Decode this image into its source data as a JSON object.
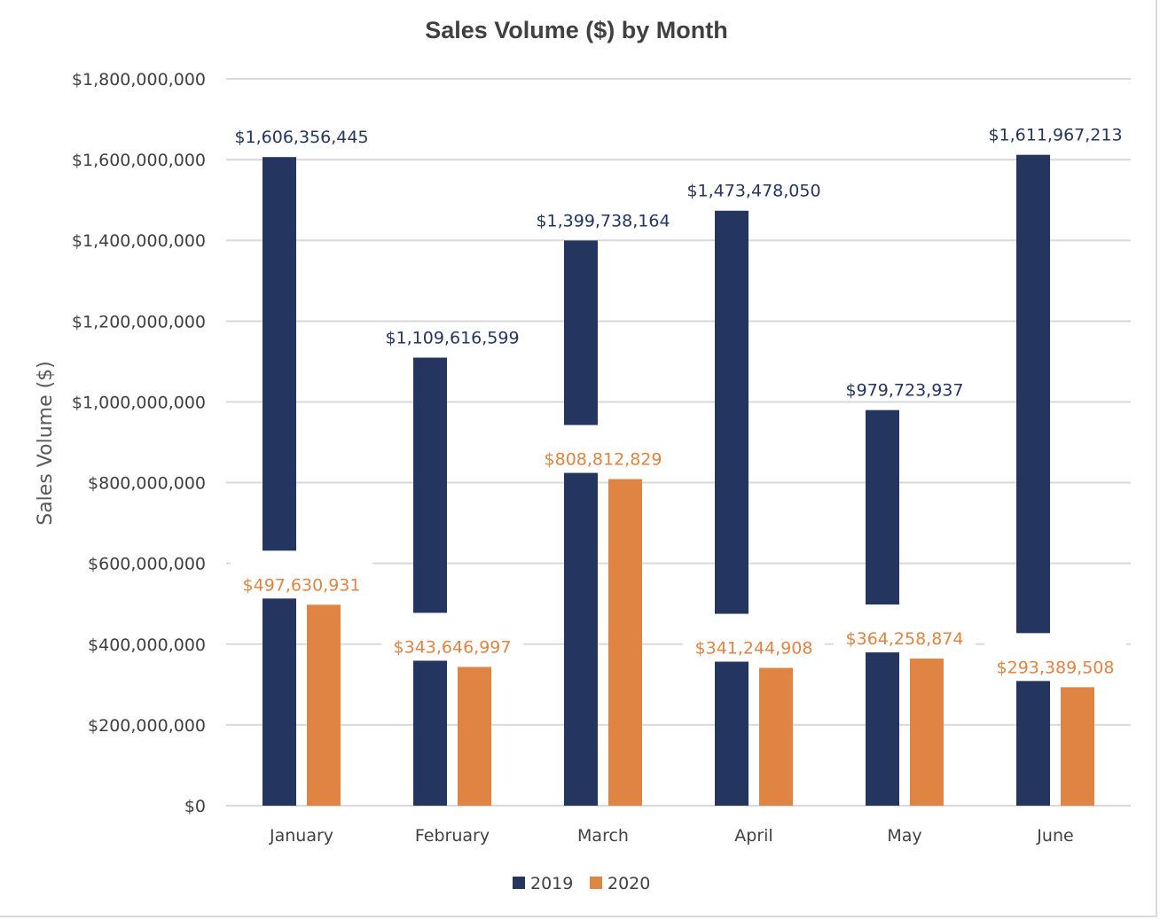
{
  "chart_data": {
    "type": "bar",
    "title": "Sales Volume  ($) by Month",
    "xlabel": "",
    "ylabel": "Sales Volume ($)",
    "ylim": [
      0,
      1800000000
    ],
    "yticks": [
      0,
      200000000,
      400000000,
      600000000,
      800000000,
      1000000000,
      1200000000,
      1400000000,
      1600000000,
      1800000000
    ],
    "ytick_labels": [
      "$0",
      "$200,000,000",
      "$400,000,000",
      "$600,000,000",
      "$800,000,000",
      "$1,000,000,000",
      "$1,200,000,000",
      "$1,400,000,000",
      "$1,600,000,000",
      "$1,800,000,000"
    ],
    "categories": [
      "January",
      "February",
      "March",
      "April",
      "May",
      "June"
    ],
    "series": [
      {
        "name": "2019",
        "color": "#243660",
        "values": [
          1606356445,
          1109616599,
          1399738164,
          1473478050,
          979723937,
          1611967213
        ],
        "labels": [
          "$1,606,356,445",
          "$1,109,616,599",
          "$1,399,738,164",
          "$1,473,478,050",
          "$979,723,937",
          "$1,611,967,213"
        ]
      },
      {
        "name": "2020",
        "color": "#e08443",
        "values": [
          497630931,
          343646997,
          808812829,
          341244908,
          364258874,
          293389508
        ],
        "labels": [
          "$497,630,931",
          "$343,646,997",
          "$808,812,829",
          "$341,244,908",
          "$364,258,874",
          "$293,389,508"
        ]
      }
    ],
    "grid": true,
    "legend_position": "bottom"
  }
}
